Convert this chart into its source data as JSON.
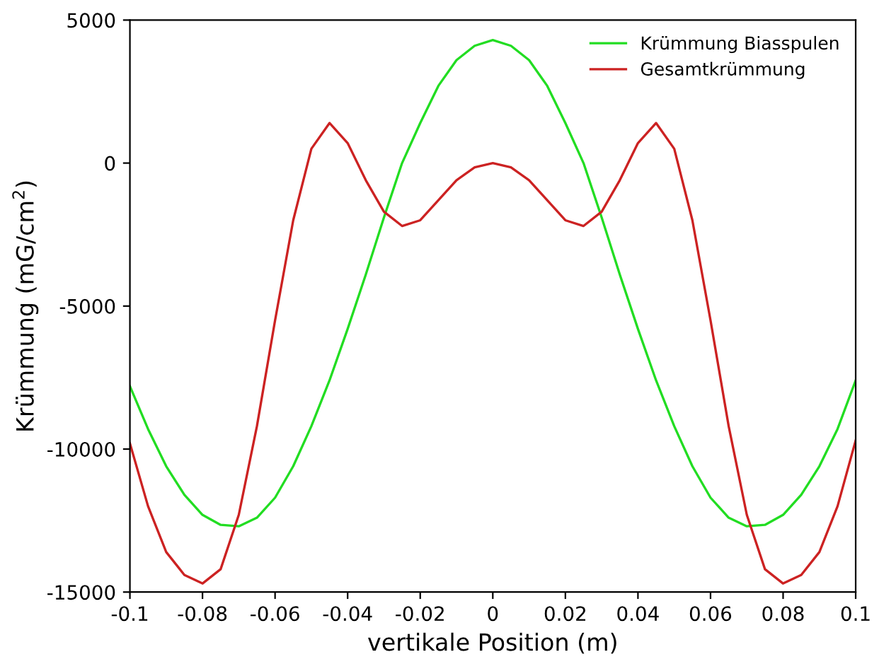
{
  "chart_data": {
    "type": "line",
    "xlabel": "vertikale Position (m)",
    "ylabel": "Krümmung (mG/cm$^{2}$)",
    "x": [
      -0.1,
      -0.095,
      -0.09,
      -0.085,
      -0.08,
      -0.075,
      -0.07,
      -0.065,
      -0.06,
      -0.055,
      -0.05,
      -0.045,
      -0.04,
      -0.035,
      -0.03,
      -0.025,
      -0.02,
      -0.015,
      -0.01,
      -0.005,
      0,
      0.005,
      0.01,
      0.015,
      0.02,
      0.025,
      0.03,
      0.035,
      0.04,
      0.045,
      0.05,
      0.055,
      0.06,
      0.065,
      0.07,
      0.075,
      0.08,
      0.085,
      0.09,
      0.095,
      0.1
    ],
    "series": [
      {
        "name": "Krümmung Biasspulen",
        "color": "#22dd22",
        "values": [
          -7800,
          -9300,
          -10600,
          -11600,
          -12300,
          -12650,
          -12700,
          -12400,
          -11700,
          -10600,
          -9200,
          -7600,
          -5800,
          -3900,
          -1900,
          0,
          1400,
          2700,
          3600,
          4100,
          4300,
          4100,
          3600,
          2700,
          1400,
          0,
          -1900,
          -3900,
          -5800,
          -7600,
          -9200,
          -10600,
          -11700,
          -12400,
          -12700,
          -12650,
          -12300,
          -11600,
          -10600,
          -9300,
          -7600
        ]
      },
      {
        "name": "Gesamtkrümmung",
        "color": "#cc2222",
        "values": [
          -9800,
          -12000,
          -13600,
          -14400,
          -14700,
          -14200,
          -12300,
          -9200,
          -5500,
          -2000,
          500,
          1400,
          700,
          -600,
          -1700,
          -2200,
          -2000,
          -1300,
          -600,
          -150,
          0,
          -150,
          -600,
          -1300,
          -2000,
          -2200,
          -1700,
          -600,
          700,
          1400,
          500,
          -2000,
          -5500,
          -9200,
          -12300,
          -14200,
          -14700,
          -14400,
          -13600,
          -12000,
          -9700
        ]
      }
    ],
    "xlim": [
      -0.1,
      0.1
    ],
    "xticks": [
      -0.1,
      -0.08,
      -0.06,
      -0.04,
      -0.02,
      0,
      0.02,
      0.04,
      0.06,
      0.08,
      0.1
    ],
    "ylim": [
      -15000,
      5000
    ],
    "yticks": [
      -15000,
      -10000,
      -5000,
      0,
      5000
    ],
    "grid": false,
    "legend": "top right"
  }
}
